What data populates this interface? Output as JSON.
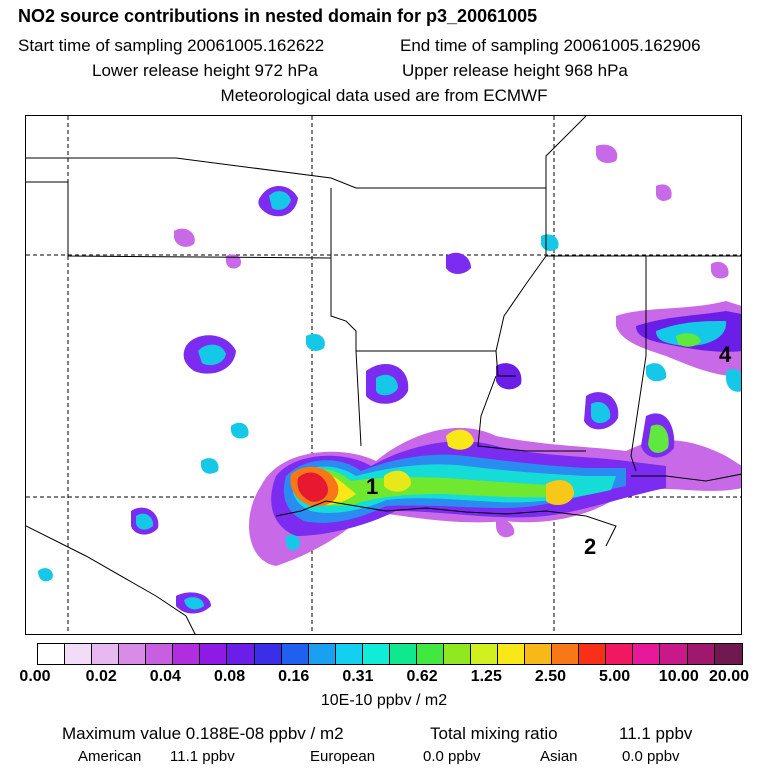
{
  "header": {
    "title": "NO2 source contributions in nested domain for p3_20061005",
    "start": "Start time of sampling 20061005.162622",
    "end": "End time of sampling 20061005.162906",
    "lower": "Lower release height  972 hPa",
    "upper": "Upper release height  968 hPa",
    "met": "Meteorological data used are from ECMWF"
  },
  "map": {
    "labels": [
      "1",
      "2",
      "4"
    ]
  },
  "colorbar": {
    "colors": [
      "#ffffff",
      "#f3dcf7",
      "#e8b8f0",
      "#d98be8",
      "#c85ee0",
      "#b02ee0",
      "#8f1ae6",
      "#6a1ee8",
      "#3a2ee8",
      "#2060f0",
      "#1aa0f0",
      "#14d0f0",
      "#10ecd8",
      "#10e890",
      "#40e840",
      "#90e820",
      "#d0f020",
      "#f8e818",
      "#f8b818",
      "#f87818",
      "#f83018",
      "#f01860",
      "#e8189a",
      "#c8188a",
      "#a0186e",
      "#701850"
    ],
    "tick_labels": [
      "0.00",
      "0.02",
      "0.04",
      "0.08",
      "0.16",
      "0.31",
      "0.62",
      "1.25",
      "2.50",
      "5.00",
      "10.00",
      "20.00"
    ],
    "units": "10E-10 ppbv / m2"
  },
  "stats": {
    "max": "Maximum value  0.188E-08 ppbv / m2",
    "total_label": "Total mixing ratio",
    "total_value": "11.1 ppbv",
    "american_label": "American",
    "american_value": "11.1 ppbv",
    "european_label": "European",
    "european_value": "0.0 ppbv",
    "asian_label": "Asian",
    "asian_value": "0.0 ppbv"
  }
}
